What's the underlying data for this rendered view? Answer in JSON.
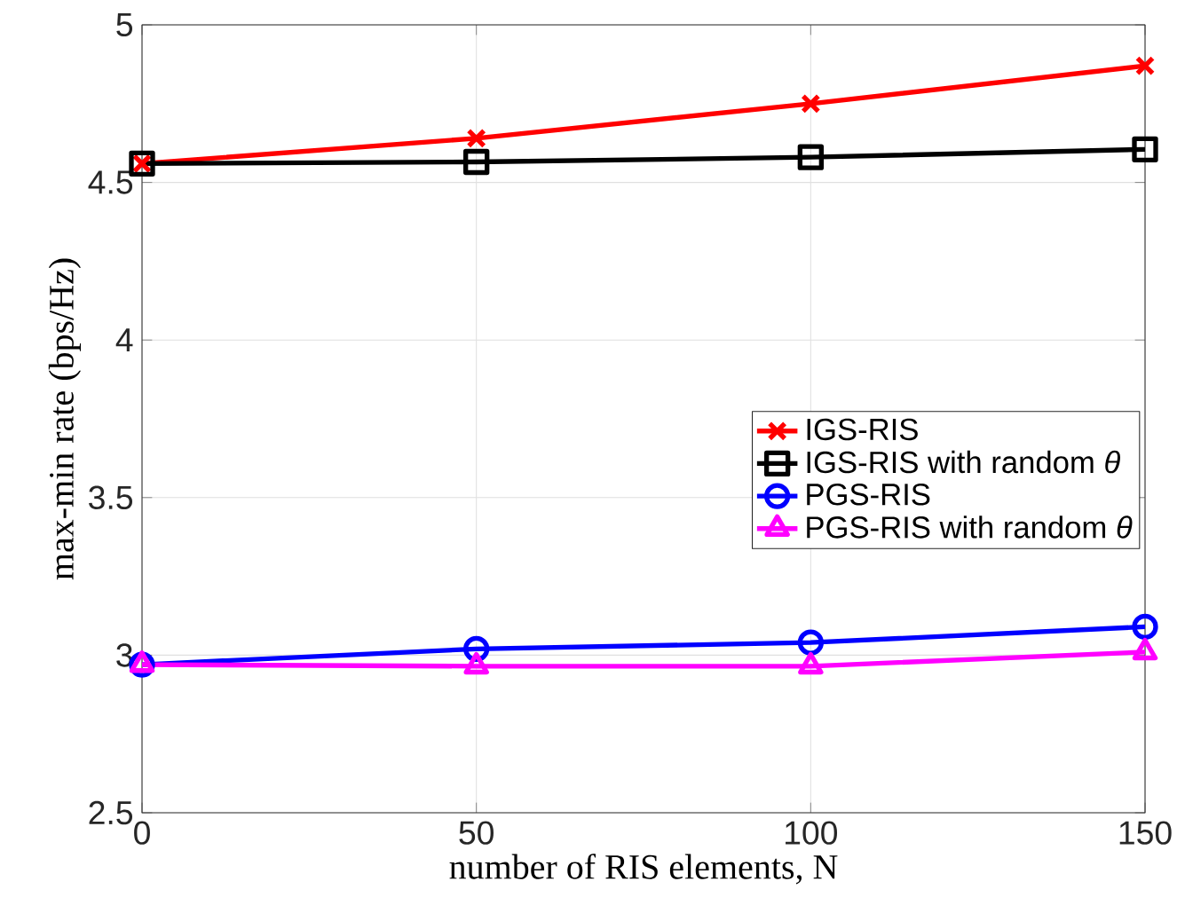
{
  "chart_data": {
    "type": "line",
    "xlabel": "number of RIS elements, N",
    "ylabel": "max-min rate (bps/Hz)",
    "x": [
      0,
      50,
      100,
      150
    ],
    "series": [
      {
        "name": "IGS-RIS",
        "color": "#ff0000",
        "marker": "cross",
        "values": [
          4.56,
          4.64,
          4.75,
          4.87
        ]
      },
      {
        "name": "IGS-RIS with random *θ*",
        "color": "#000000",
        "marker": "square",
        "values": [
          4.56,
          4.565,
          4.58,
          4.605
        ]
      },
      {
        "name": "PGS-RIS",
        "color": "#0000ff",
        "marker": "circle",
        "values": [
          2.97,
          3.02,
          3.04,
          3.09
        ]
      },
      {
        "name": "PGS-RIS with random *θ*",
        "color": "#ff00ff",
        "marker": "triangle",
        "values": [
          2.97,
          2.965,
          2.965,
          3.01
        ]
      }
    ],
    "xlim": [
      0,
      150
    ],
    "xticks": [
      0,
      50,
      100,
      150
    ],
    "ylim": [
      2.5,
      5
    ],
    "yticks": [
      2.5,
      3,
      3.5,
      4,
      4.5,
      5
    ],
    "grid": true,
    "legend": "right"
  }
}
